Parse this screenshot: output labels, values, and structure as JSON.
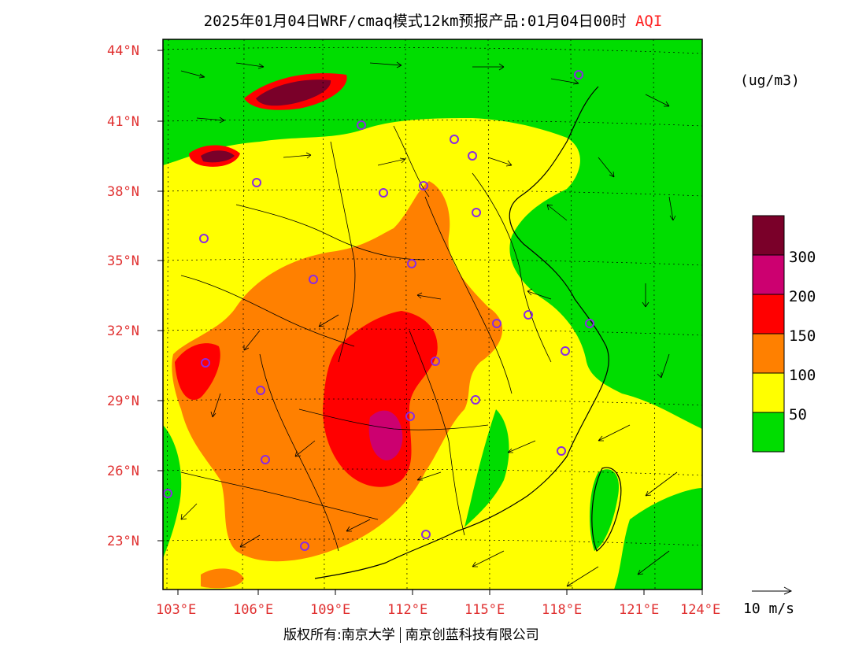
{
  "title": {
    "main": "2025年01月04日WRF/cmaq模式12km预报产品:01月04日00时",
    "product": "AQI"
  },
  "unit_label": "(ug/m3)",
  "credit": {
    "left": "版权所有:南京大学",
    "right": "南京创蓝科技有限公司"
  },
  "wind_reference": {
    "label": "10 m/s"
  },
  "map": {
    "lon_range": [
      102.8,
      124
    ],
    "lat_range": [
      21,
      44.3
    ],
    "lat_ticks": [
      "44°N",
      "41°N",
      "38°N",
      "35°N",
      "32°N",
      "29°N",
      "26°N",
      "23°N"
    ],
    "lon_ticks": [
      "103°E",
      "106°E",
      "109°E",
      "112°E",
      "115°E",
      "118°E",
      "121°E",
      "124°E"
    ],
    "station_marker_color": "#8a2be2",
    "background_color": "#00dd00"
  },
  "colorbar": {
    "labels": [
      "300",
      "200",
      "150",
      "100",
      "50"
    ],
    "colors": [
      "#7a0029",
      "#cc0070",
      "#ff0000",
      "#ff8000",
      "#ffff00",
      "#00dd00"
    ]
  },
  "aqi_colors": {
    "good": "#00dd00",
    "moderate": "#ffff00",
    "sensitive": "#ff8000",
    "unhealthy": "#ff0000",
    "very_unhealthy": "#cc0070",
    "hazardous": "#7a0029"
  }
}
